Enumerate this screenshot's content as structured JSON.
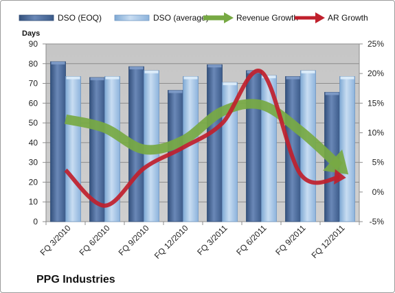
{
  "company": "PPG Industries",
  "chart_data": {
    "type": "bar",
    "title": "",
    "ylabel": "Days",
    "ylim": [
      0,
      90
    ],
    "y_ticks": [
      0,
      10,
      20,
      30,
      40,
      50,
      60,
      70,
      80,
      90
    ],
    "y2lim": [
      -5,
      25
    ],
    "y2_ticks": [
      -5,
      0,
      5,
      10,
      15,
      20,
      25
    ],
    "y2_tick_labels": [
      "-5%",
      "0%",
      "5%",
      "10%",
      "15%",
      "20%",
      "25%"
    ],
    "categories": [
      "FQ 3/2010",
      "FQ 6/2010",
      "FQ 9/2010",
      "FQ 12/2010",
      "FQ 3/2011",
      "FQ 6/2011",
      "FQ 9/2011",
      "FQ 12/2011"
    ],
    "grid": true,
    "legend_position": "top",
    "series": [
      {
        "name": "DSO (EOQ)",
        "type": "bar",
        "axis": "left",
        "color": "#4f6d9a",
        "values": [
          81,
          73,
          78.5,
          66.5,
          79.5,
          76.5,
          73.5,
          65.5
        ]
      },
      {
        "name": "DSO (average)",
        "type": "bar",
        "axis": "left",
        "color": "#9fc3e6",
        "values": [
          73.5,
          73.5,
          76.5,
          73.5,
          70.5,
          74,
          76.5,
          73.5
        ]
      },
      {
        "name": "Revenue Growth",
        "type": "line",
        "axis": "right",
        "color": "#77a943",
        "values": [
          12.3,
          10.8,
          7.2,
          8.7,
          13.6,
          14.7,
          10.3,
          4.3
        ]
      },
      {
        "name": "AR Growth",
        "type": "line",
        "axis": "right",
        "color": "#c0202c",
        "values": [
          3.7,
          -2.3,
          4.0,
          7.5,
          11.6,
          20.3,
          3.0,
          2.5
        ]
      }
    ]
  }
}
